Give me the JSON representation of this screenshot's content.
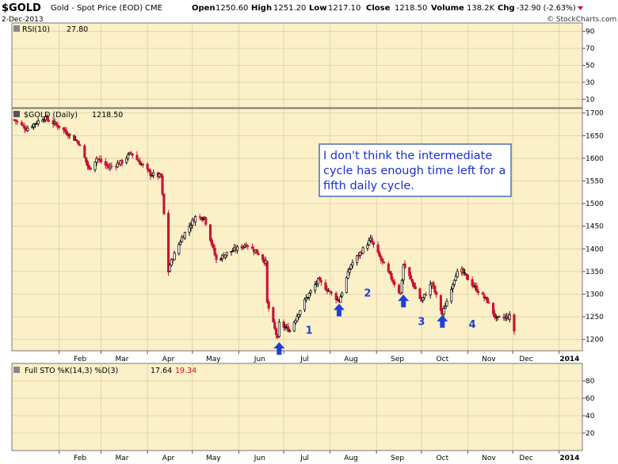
{
  "header": {
    "symbol": "$GOLD",
    "name": "Gold - Spot Price (EOD)",
    "exchange": "CME",
    "date": "2-Dec-2013",
    "open_label": "Open",
    "open": "1250.60",
    "high_label": "High",
    "high": "1251.20",
    "low_label": "Low",
    "low": "1217.10",
    "close_label": "Close",
    "close": "1218.50",
    "volume_label": "Volume",
    "volume": "138.2K",
    "chg_label": "Chg",
    "chg": "-32.90 (-2.63%)",
    "watermark": "© StockCharts.com"
  },
  "colors": {
    "panel_bg": "#fbf0c8",
    "candle_down": "#cc1133",
    "candle_up": "#000000",
    "arrow": "#1f3fd8",
    "label": "#1f3fd8",
    "annotation_border": "#4a6fb5",
    "annotation_text": "#1a2fd0",
    "chg_red": "#cc1133"
  },
  "chart_data": [
    {
      "type": "line",
      "panel": "RSI",
      "legend": "RSI(10)",
      "legend_value": "27.80",
      "ylim": [
        0,
        100
      ],
      "yticks": [
        10,
        30,
        50,
        70,
        90
      ],
      "series": []
    },
    {
      "type": "candlestick",
      "panel": "price",
      "legend": "$GOLD (Daily)",
      "legend_value": "1218.50",
      "ylim": [
        1175,
        1710
      ],
      "yticks": [
        1200,
        1250,
        1300,
        1350,
        1400,
        1450,
        1500,
        1550,
        1600,
        1650,
        1700
      ],
      "xticks": [
        "Feb",
        "Mar",
        "Apr",
        "May",
        "Jun",
        "Jul",
        "Aug",
        "Sep",
        "Oct",
        "Nov",
        "Dec",
        "2014"
      ],
      "x_start": "2013-01-02",
      "x_end": "2013-12-02",
      "anchors": [
        {
          "date": "2013-01-02",
          "close": 1685
        },
        {
          "date": "2013-01-10",
          "close": 1665
        },
        {
          "date": "2013-01-22",
          "close": 1690
        },
        {
          "date": "2013-02-01",
          "close": 1670
        },
        {
          "date": "2013-02-14",
          "close": 1635
        },
        {
          "date": "2013-02-21",
          "close": 1575
        },
        {
          "date": "2013-02-26",
          "close": 1600
        },
        {
          "date": "2013-03-06",
          "close": 1580
        },
        {
          "date": "2013-03-15",
          "close": 1592
        },
        {
          "date": "2013-03-21",
          "close": 1612
        },
        {
          "date": "2013-04-03",
          "close": 1565
        },
        {
          "date": "2013-04-10",
          "close": 1560
        },
        {
          "date": "2013-04-12",
          "close": 1476
        },
        {
          "date": "2013-04-15",
          "close": 1350
        },
        {
          "date": "2013-04-16",
          "close": 1365
        },
        {
          "date": "2013-04-24",
          "close": 1425
        },
        {
          "date": "2013-05-03",
          "close": 1470
        },
        {
          "date": "2013-05-09",
          "close": 1470
        },
        {
          "date": "2013-05-17",
          "close": 1375
        },
        {
          "date": "2013-05-24",
          "close": 1390
        },
        {
          "date": "2013-06-06",
          "close": 1410
        },
        {
          "date": "2013-06-14",
          "close": 1390
        },
        {
          "date": "2013-06-19",
          "close": 1370
        },
        {
          "date": "2013-06-20",
          "close": 1280
        },
        {
          "date": "2013-06-27",
          "close": 1200
        },
        {
          "date": "2013-06-28",
          "close": 1235
        },
        {
          "date": "2013-07-05",
          "close": 1220
        },
        {
          "date": "2013-07-15",
          "close": 1285
        },
        {
          "date": "2013-07-24",
          "close": 1330
        },
        {
          "date": "2013-08-07",
          "close": 1285
        },
        {
          "date": "2013-08-15",
          "close": 1365
        },
        {
          "date": "2013-08-28",
          "close": 1420
        },
        {
          "date": "2013-09-05",
          "close": 1370
        },
        {
          "date": "2013-09-17",
          "close": 1300
        },
        {
          "date": "2013-09-19",
          "close": 1365
        },
        {
          "date": "2013-10-01",
          "close": 1285
        },
        {
          "date": "2013-10-08",
          "close": 1325
        },
        {
          "date": "2013-10-15",
          "close": 1255
        },
        {
          "date": "2013-10-24",
          "close": 1345
        },
        {
          "date": "2013-10-28",
          "close": 1350
        },
        {
          "date": "2013-11-07",
          "close": 1310
        },
        {
          "date": "2013-11-14",
          "close": 1285
        },
        {
          "date": "2013-11-20",
          "close": 1245
        },
        {
          "date": "2013-11-29",
          "close": 1250
        },
        {
          "date": "2013-12-02",
          "close": 1218.5
        }
      ],
      "cycle_lows": [
        {
          "date": "2013-06-28",
          "price": 1180
        },
        {
          "date": "2013-08-07",
          "price": 1265
        },
        {
          "date": "2013-09-19",
          "price": 1285
        },
        {
          "date": "2013-10-15",
          "price": 1240
        }
      ],
      "cycle_labels": [
        {
          "text": "1",
          "date": "2013-07-18",
          "price": 1213
        },
        {
          "text": "2",
          "date": "2013-08-26",
          "price": 1295
        },
        {
          "text": "3",
          "date": "2013-10-01",
          "price": 1232
        },
        {
          "text": "4",
          "date": "2013-11-04",
          "price": 1226
        }
      ],
      "annotation": "I don't think the intermediate cycle has enough time left for a fifth daily cycle."
    },
    {
      "type": "line",
      "panel": "STO",
      "legend": "Full STO %K(14,3) %D(3)",
      "legend_k": "17.64",
      "legend_d": "19.34",
      "ylim": [
        0,
        100
      ],
      "yticks": [
        20,
        40,
        60,
        80
      ],
      "xticks": [
        "Feb",
        "Mar",
        "Apr",
        "May",
        "Jun",
        "Jul",
        "Aug",
        "Sep",
        "Oct",
        "Nov",
        "Dec",
        "2014"
      ],
      "series": []
    }
  ]
}
